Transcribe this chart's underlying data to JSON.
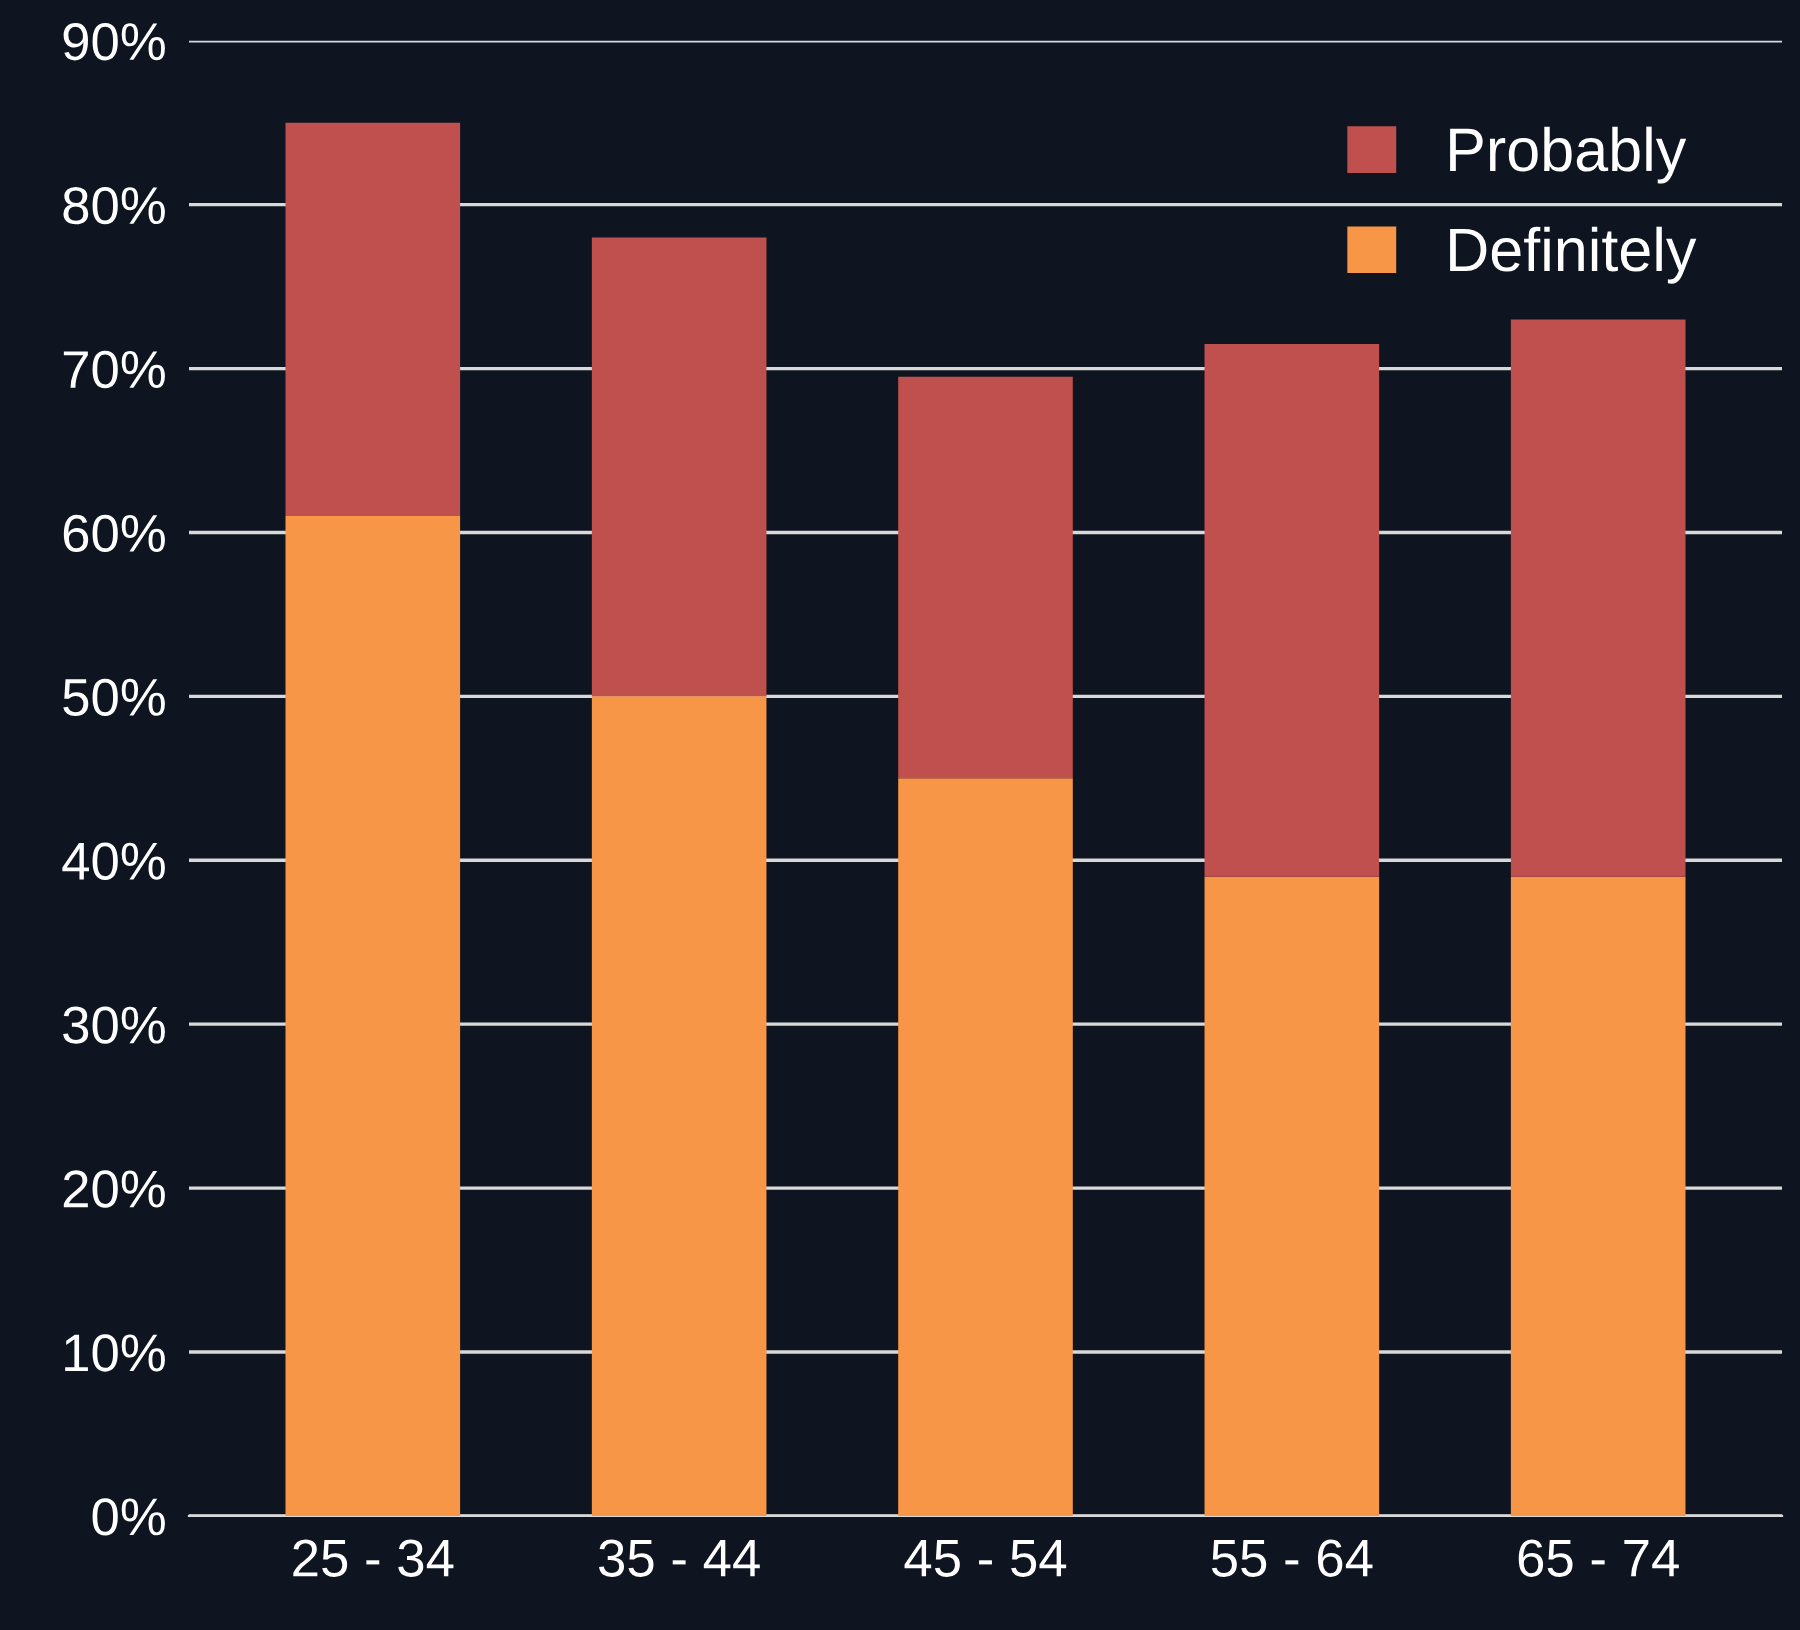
{
  "chart_data": {
    "type": "bar",
    "stacked": true,
    "categories": [
      "25 - 34",
      "35 - 44",
      "45 - 54",
      "55 - 64",
      "65 - 74"
    ],
    "series": [
      {
        "name": "Definitely",
        "color": "#f79646",
        "values": [
          61,
          50,
          45,
          39,
          39
        ]
      },
      {
        "name": "Probably",
        "color": "#c0504d",
        "values": [
          24,
          28,
          24.5,
          32.5,
          34
        ]
      }
    ],
    "ylim": [
      0,
      90
    ],
    "yticks": [
      {
        "value": 0,
        "label": "0%"
      },
      {
        "value": 10,
        "label": "10%"
      },
      {
        "value": 20,
        "label": "20%"
      },
      {
        "value": 30,
        "label": "30%"
      },
      {
        "value": 40,
        "label": "40%"
      },
      {
        "value": 50,
        "label": "50%"
      },
      {
        "value": 60,
        "label": "60%"
      },
      {
        "value": 70,
        "label": "70%"
      },
      {
        "value": 80,
        "label": "80%"
      },
      {
        "value": 90,
        "label": "90%"
      }
    ],
    "grid": "y",
    "legend": "top right"
  }
}
